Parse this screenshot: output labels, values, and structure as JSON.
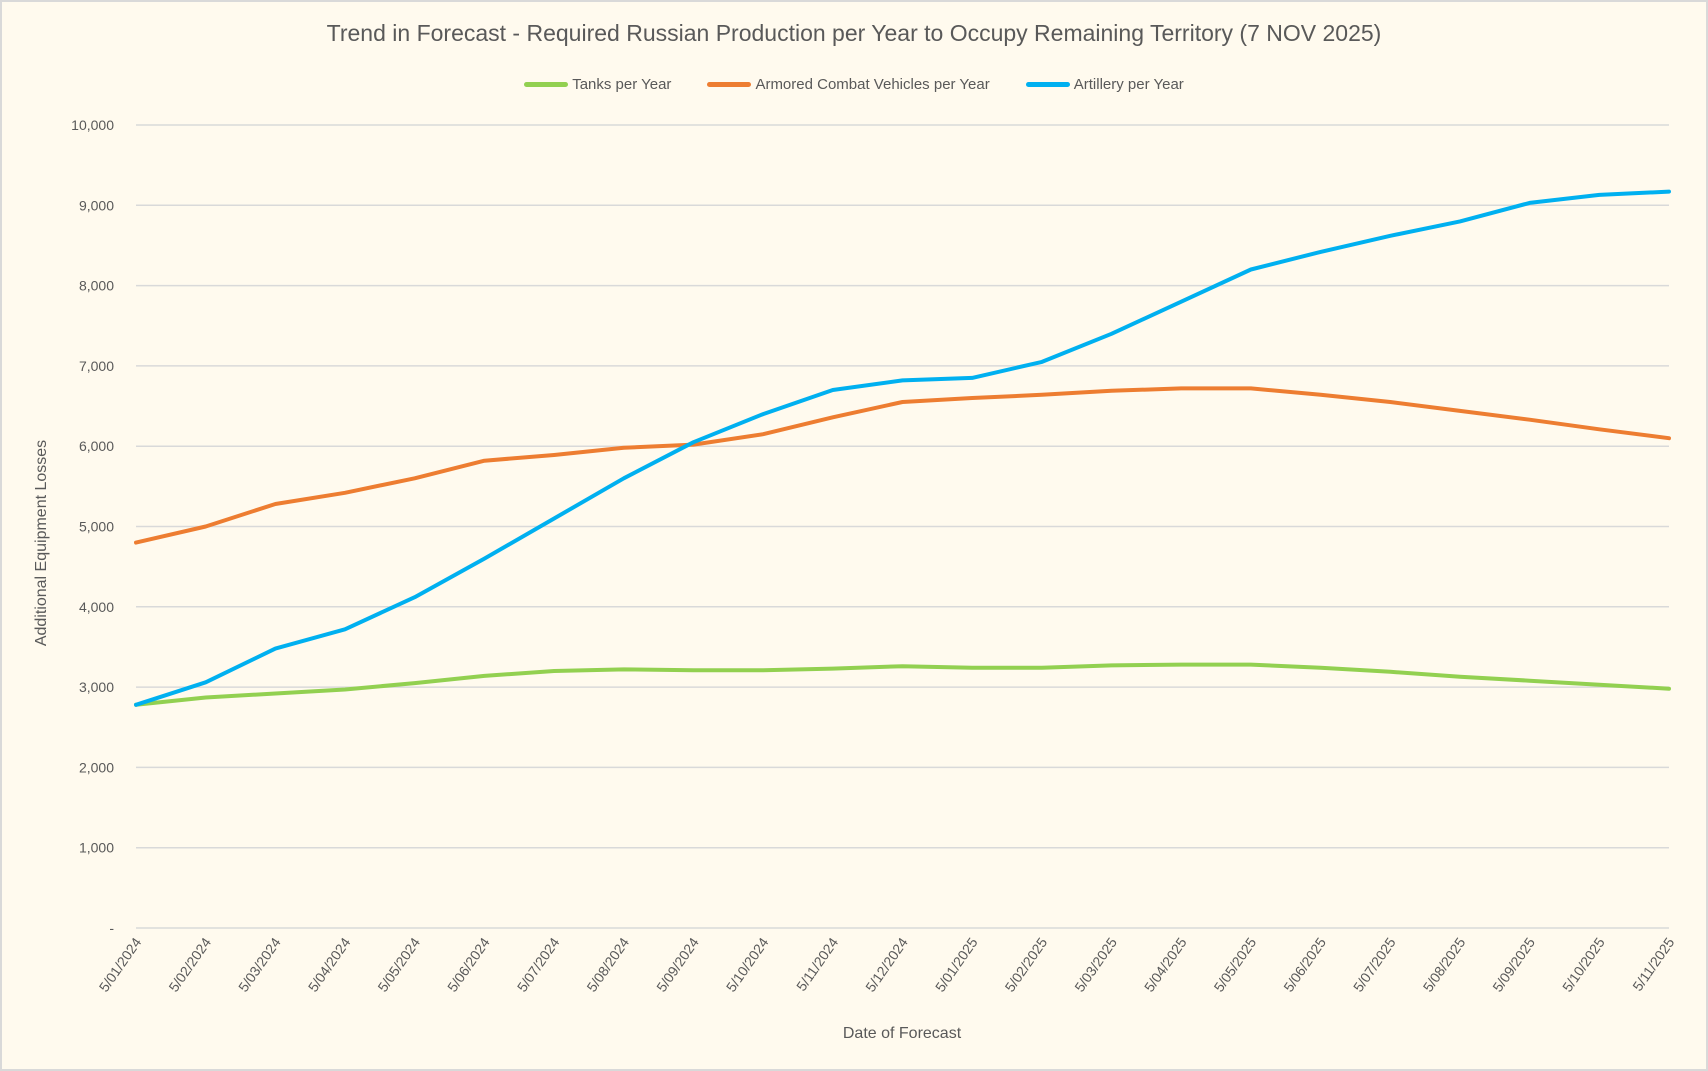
{
  "chart_data": {
    "type": "line",
    "title": "Trend in Forecast - Required Russian Production per Year to Occupy Remaining Territory (7 NOV 2025)",
    "xlabel": "Date of Forecast",
    "ylabel": "Additional Equipment Losses",
    "ylim": [
      0,
      10000
    ],
    "yticks": [
      0,
      1000,
      2000,
      3000,
      4000,
      5000,
      6000,
      7000,
      8000,
      9000,
      10000
    ],
    "ytick_labels": [
      "-",
      "1,000",
      "2,000",
      "3,000",
      "4,000",
      "5,000",
      "6,000",
      "7,000",
      "8,000",
      "9,000",
      "10,000"
    ],
    "xtick_labels": [
      "5/01/2024",
      "5/02/2024",
      "5/03/2024",
      "5/04/2024",
      "5/05/2024",
      "5/06/2024",
      "5/07/2024",
      "5/08/2024",
      "5/09/2024",
      "5/10/2024",
      "5/11/2024",
      "5/12/2024",
      "5/01/2025",
      "5/02/2025",
      "5/03/2025",
      "5/04/2025",
      "5/05/2025",
      "5/06/2025",
      "5/07/2025",
      "5/08/2025",
      "5/09/2025",
      "5/10/2025",
      "5/11/2025"
    ],
    "grid": true,
    "legend_position": "top",
    "x": [
      "5/01/2024",
      "5/02/2024",
      "5/03/2024",
      "5/04/2024",
      "5/05/2024",
      "5/06/2024",
      "5/07/2024",
      "5/08/2024",
      "5/09/2024",
      "5/10/2024",
      "5/11/2024",
      "5/12/2024",
      "5/01/2025",
      "5/02/2025",
      "5/03/2025",
      "5/04/2025",
      "5/05/2025",
      "5/06/2025",
      "5/07/2025",
      "5/08/2025",
      "5/09/2025",
      "5/10/2025",
      "5/11/2025"
    ],
    "series": [
      {
        "name": "Tanks per Year",
        "color": "#92d050",
        "values": [
          2780,
          2870,
          2920,
          2970,
          3050,
          3140,
          3200,
          3220,
          3210,
          3210,
          3230,
          3260,
          3240,
          3240,
          3270,
          3280,
          3280,
          3240,
          3190,
          3130,
          3080,
          3030,
          2980
        ]
      },
      {
        "name": "Armored Combat Vehicles per Year",
        "color": "#ed7d31",
        "values": [
          4800,
          5000,
          5280,
          5420,
          5600,
          5820,
          5890,
          5980,
          6020,
          6150,
          6360,
          6550,
          6600,
          6640,
          6690,
          6720,
          6720,
          6640,
          6550,
          6440,
          6330,
          6210,
          6100
        ]
      },
      {
        "name": "Artillery per Year",
        "color": "#00b0f0",
        "values": [
          2780,
          3060,
          3480,
          3720,
          4120,
          4600,
          5100,
          5600,
          6050,
          6400,
          6700,
          6820,
          6850,
          7050,
          7400,
          7800,
          8200,
          8420,
          8620,
          8800,
          9030,
          9130,
          9170
        ]
      }
    ]
  }
}
